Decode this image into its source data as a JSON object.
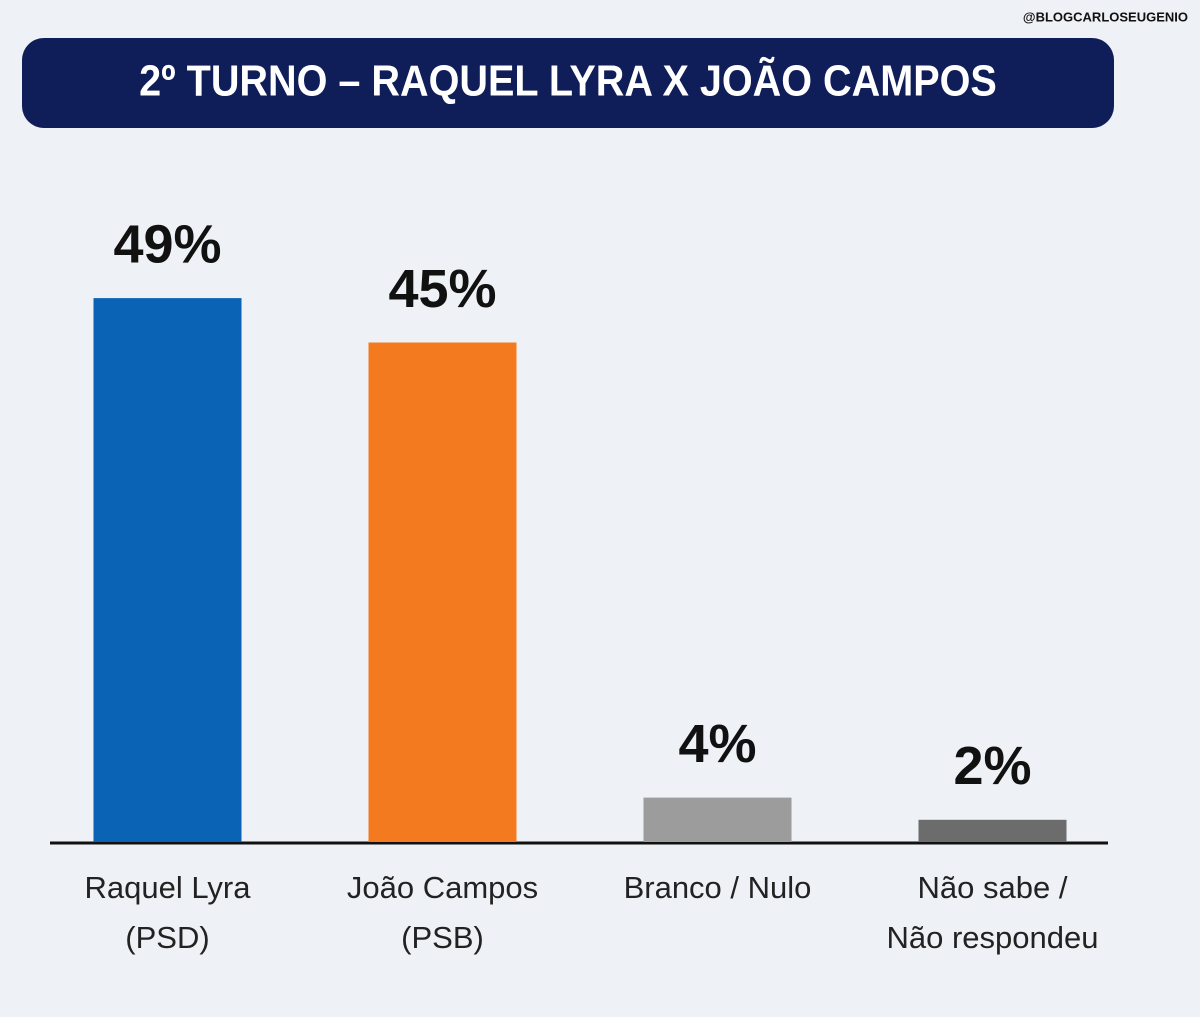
{
  "watermark": "@BLOGCARLOSEUGENIO",
  "chart_data": {
    "type": "bar",
    "title": "2º TURNO – RAQUEL LYRA X JOÃO CAMPOS",
    "categories": [
      [
        "Raquel Lyra",
        "(PSD)"
      ],
      [
        "João Campos",
        "(PSB)"
      ],
      [
        "Branco / Nulo"
      ],
      [
        "Não sabe /",
        "Não respondeu"
      ]
    ],
    "values": [
      49,
      45,
      4,
      2
    ],
    "value_labels": [
      "49%",
      "45%",
      "4%",
      "2%"
    ],
    "colors": [
      "#0b63b5",
      "#f47a20",
      "#9c9c9c",
      "#6c6c6c"
    ],
    "ylim": [
      0,
      60
    ]
  }
}
